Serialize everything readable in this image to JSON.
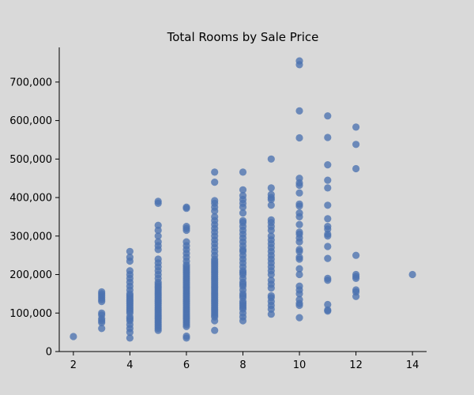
{
  "chart_data": {
    "type": "scatter",
    "title": "Total Rooms by Sale Price",
    "xlabel": "",
    "ylabel": "",
    "xlim": [
      1.5,
      14.5
    ],
    "ylim": [
      0,
      790000
    ],
    "x_ticks": [
      2,
      4,
      6,
      8,
      10,
      12,
      14
    ],
    "y_ticks": [
      0,
      100000,
      200000,
      300000,
      400000,
      500000,
      600000,
      700000
    ],
    "x_tick_labels": [
      "2",
      "4",
      "6",
      "8",
      "10",
      "12",
      "14"
    ],
    "y_tick_labels": [
      "0",
      "100,000",
      "200,000",
      "300,000",
      "400,000",
      "500,000",
      "600,000",
      "700,000"
    ],
    "grid": false,
    "point_color": "#4c72b0",
    "series": [
      {
        "values_by_x": [
          {
            "x": 2,
            "y": [
              39000
            ]
          },
          {
            "x": 3,
            "y": [
              60000,
              75000,
              80000,
              85000,
              95000,
              100000,
              130000,
              135000,
              140000,
              145000,
              150000,
              155000
            ]
          },
          {
            "x": 4,
            "y": [
              35000,
              50000,
              60000,
              70000,
              80000,
              85000,
              90000,
              100000,
              105000,
              110000,
              115000,
              120000,
              125000,
              130000,
              135000,
              140000,
              145000,
              150000,
              160000,
              170000,
              180000,
              190000,
              200000,
              210000,
              235000,
              245000,
              260000
            ]
          },
          {
            "x": 5,
            "y": [
              55000,
              60000,
              65000,
              70000,
              75000,
              80000,
              85000,
              90000,
              95000,
              100000,
              105000,
              110000,
              115000,
              120000,
              125000,
              130000,
              135000,
              140000,
              145000,
              150000,
              155000,
              160000,
              165000,
              170000,
              175000,
              180000,
              190000,
              200000,
              210000,
              220000,
              230000,
              240000,
              265000,
              275000,
              285000,
              300000,
              315000,
              328000,
              385000,
              390000
            ]
          },
          {
            "x": 6,
            "y": [
              35000,
              40000,
              65000,
              70000,
              75000,
              80000,
              85000,
              90000,
              95000,
              100000,
              105000,
              110000,
              115000,
              120000,
              125000,
              130000,
              135000,
              140000,
              145000,
              150000,
              155000,
              160000,
              165000,
              170000,
              175000,
              180000,
              185000,
              190000,
              195000,
              200000,
              205000,
              210000,
              215000,
              220000,
              225000,
              235000,
              245000,
              255000,
              265000,
              275000,
              285000,
              315000,
              320000,
              325000,
              372000,
              375000
            ]
          },
          {
            "x": 7,
            "y": [
              55000,
              80000,
              90000,
              95000,
              100000,
              105000,
              110000,
              115000,
              120000,
              125000,
              130000,
              135000,
              140000,
              145000,
              150000,
              155000,
              160000,
              165000,
              170000,
              175000,
              180000,
              185000,
              190000,
              195000,
              200000,
              205000,
              210000,
              215000,
              220000,
              225000,
              230000,
              235000,
              240000,
              250000,
              260000,
              270000,
              280000,
              290000,
              300000,
              310000,
              320000,
              330000,
              340000,
              350000,
              365000,
              375000,
              385000,
              392000,
              440000,
              466000
            ]
          },
          {
            "x": 8,
            "y": [
              80000,
              90000,
              100000,
              110000,
              115000,
              120000,
              125000,
              130000,
              140000,
              145000,
              150000,
              160000,
              170000,
              175000,
              180000,
              190000,
              200000,
              205000,
              210000,
              220000,
              230000,
              240000,
              250000,
              260000,
              265000,
              275000,
              285000,
              295000,
              305000,
              315000,
              325000,
              335000,
              340000,
              360000,
              375000,
              385000,
              395000,
              405000,
              420000,
              466000
            ]
          },
          {
            "x": 9,
            "y": [
              97000,
              110000,
              120000,
              130000,
              140000,
              145000,
              165000,
              175000,
              185000,
              200000,
              210000,
              220000,
              230000,
              240000,
              250000,
              260000,
              270000,
              280000,
              290000,
              300000,
              315000,
              325000,
              335000,
              342000,
              380000,
              395000,
              400000,
              408000,
              425000,
              500000
            ]
          },
          {
            "x": 10,
            "y": [
              88000,
              120000,
              125000,
              135000,
              150000,
              160000,
              170000,
              200000,
              215000,
              240000,
              245000,
              260000,
              265000,
              285000,
              295000,
              305000,
              310000,
              330000,
              350000,
              360000,
              378000,
              383000,
              412000,
              432000,
              438000,
              450000,
              555000,
              625000,
              745000,
              755000
            ]
          },
          {
            "x": 11,
            "y": [
              105000,
              108000,
              122000,
              185000,
              190000,
              242000,
              273000,
              300000,
              305000,
              318000,
              325000,
              345000,
              380000,
              425000,
              445000,
              485000,
              556000,
              612000
            ]
          },
          {
            "x": 12,
            "y": [
              143000,
              155000,
              160000,
              190000,
              195000,
              200000,
              250000,
              475000,
              538000,
              583000
            ]
          },
          {
            "x": 14,
            "y": [
              200000
            ]
          }
        ]
      }
    ]
  }
}
